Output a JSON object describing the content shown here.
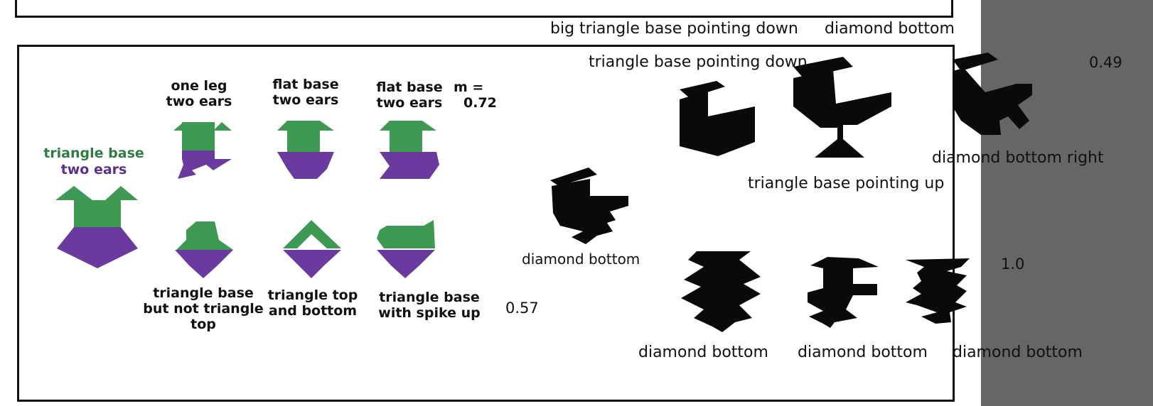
{
  "colors": {
    "green": "#3e9a52",
    "purple": "#6b3a9e",
    "black": "#0a0a0a",
    "panel": "#666666"
  },
  "figures": {
    "main_label_line1": "triangle base",
    "main_label_line2": "two ears",
    "f1_l1": "one leg",
    "f1_l2": "two ears",
    "f2_l1": "flat base",
    "f2_l2": "two ears",
    "f3_l1": "flat base",
    "f3_l2": "two ears",
    "m_l1": "m =",
    "m_l2": "0.72",
    "b1_l1": "triangle base",
    "b1_l2": "but not triangle",
    "b1_l3": "top",
    "b2_l1": "triangle top",
    "b2_l2": "and bottom",
    "b3_l1": "triangle base",
    "b3_l2": "with spike up",
    "num_057": "0.57"
  },
  "silhouettes": {
    "big_tri_down": "big triangle base pointing down",
    "diamond_bottom_top": "diamond bottom",
    "tri_down": "triangle base pointing down",
    "num_049": "0.49",
    "diamond_bottom_right": "diamond bottom right",
    "tri_up": "triangle base pointing up",
    "diamond_bottom_mid": "diamond bottom",
    "num_10": "1.0",
    "db1": "diamond bottom",
    "db2": "diamond bottom",
    "db3": "diamond bottom"
  }
}
